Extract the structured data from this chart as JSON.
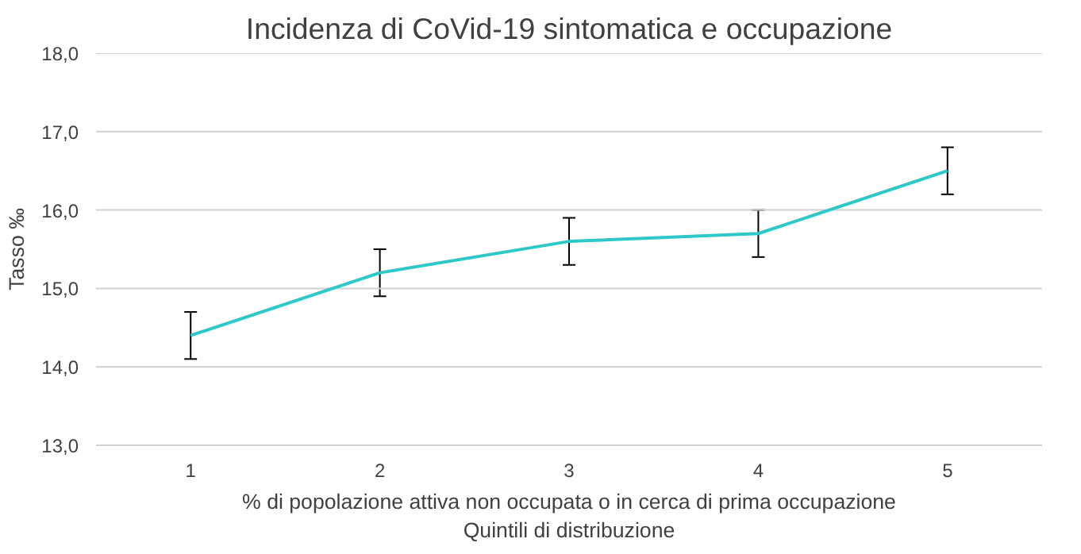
{
  "chart_data": {
    "type": "line",
    "title": "Incidenza di CoVid-19 sintomatica e occupazione",
    "ylabel": "Tasso ‰",
    "xlabel": "% di popolazione attiva non occupata o in cerca di prima occupazione\nQuintili di distribuzione",
    "categories": [
      "1",
      "2",
      "3",
      "4",
      "5"
    ],
    "series": [
      {
        "color": "#2ec8c8",
        "values": [
          14.4,
          15.2,
          15.6,
          15.7,
          16.5
        ],
        "errors": [
          0.3,
          0.3,
          0.3,
          0.3,
          0.3
        ]
      }
    ],
    "ylim": [
      13,
      18
    ],
    "yticks": [
      {
        "value": 13,
        "label": "13,0"
      },
      {
        "value": 14,
        "label": "14,0"
      },
      {
        "value": 15,
        "label": "15,0"
      },
      {
        "value": 16,
        "label": "16,0"
      },
      {
        "value": 17,
        "label": "17,0"
      },
      {
        "value": 18,
        "label": "18,0"
      }
    ],
    "grid": "y",
    "marker": "none",
    "line_style": "solid"
  }
}
